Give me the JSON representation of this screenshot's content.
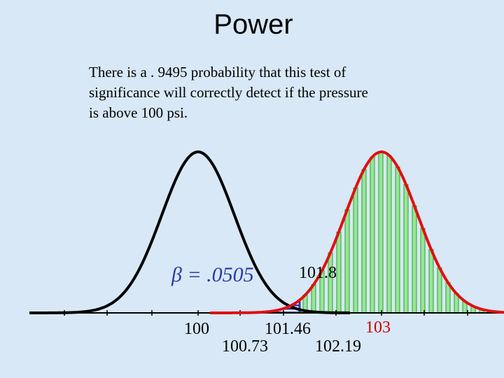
{
  "title": "Power",
  "body": [
    "There is a . 9495 probability that this test of",
    "significance will correctly detect if the pressure",
    "is above 100 psi."
  ],
  "beta_label": "β = .0505",
  "labels": {
    "cutoff_top": "101.8",
    "mean_null": "100",
    "cutoff": "101.46",
    "mean_alt": "103",
    "tick_a": "100.73",
    "tick_b": "102.19"
  }
}
